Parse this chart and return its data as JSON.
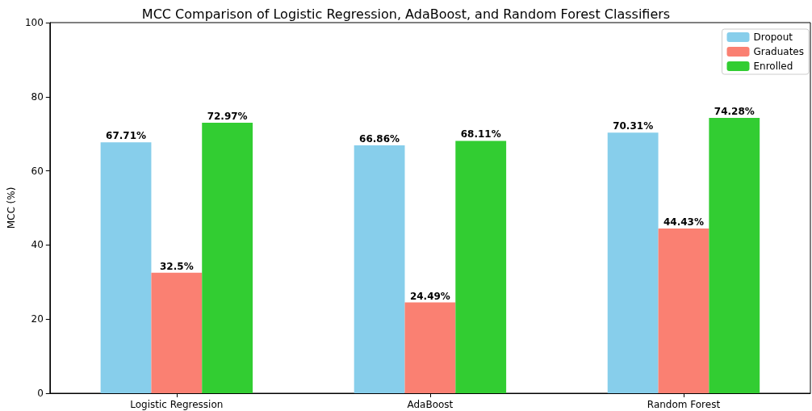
{
  "chart_data": {
    "type": "bar",
    "title": "MCC Comparison of Logistic Regression, AdaBoost, and Random Forest Classifiers",
    "ylabel": "MCC (%)",
    "categories": [
      "Logistic Regression",
      "AdaBoost",
      "Random Forest"
    ],
    "series": [
      {
        "name": "Dropout",
        "color": "#87ceeb",
        "values": [
          67.71,
          66.86,
          70.31
        ],
        "value_labels": [
          "67.71%",
          "66.86%",
          "70.31%"
        ]
      },
      {
        "name": "Graduates",
        "color": "#fa8072",
        "values": [
          32.5,
          24.49,
          44.43
        ],
        "value_labels": [
          "32.5%",
          "24.49%",
          "44.43%"
        ]
      },
      {
        "name": "Enrolled",
        "color": "#32cd32",
        "values": [
          72.97,
          68.11,
          74.28
        ],
        "value_labels": [
          "72.97%",
          "68.11%",
          "74.28%"
        ]
      }
    ],
    "ylim": [
      0,
      100
    ],
    "yticks": [
      0,
      20,
      40,
      60,
      80,
      100
    ],
    "grid": false,
    "legend": "top right"
  }
}
